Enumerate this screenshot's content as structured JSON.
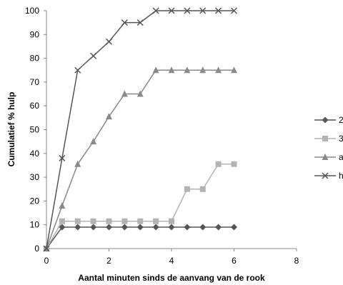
{
  "chart_data": {
    "type": "line",
    "title": "",
    "xlabel": "Aantal minuten sinds de aanvang van de rook",
    "ylabel": "Cumulatief % hulp",
    "xlim": [
      0,
      8
    ],
    "ylim": [
      0,
      100
    ],
    "xticks": [
      0,
      2,
      4,
      6,
      8
    ],
    "yticks": [
      0,
      10,
      20,
      30,
      40,
      50,
      60,
      70,
      80,
      90,
      100
    ],
    "grid": false,
    "legend_position": "right",
    "series": [
      {
        "name": "2",
        "color": "#555555",
        "marker": "diamond",
        "points": [
          [
            0,
            0
          ],
          [
            0.5,
            9
          ],
          [
            1,
            9
          ],
          [
            1.5,
            9
          ],
          [
            2,
            9
          ],
          [
            2.5,
            9
          ],
          [
            3,
            9
          ],
          [
            3.5,
            9
          ],
          [
            4,
            9
          ],
          [
            4.5,
            9
          ],
          [
            5,
            9
          ],
          [
            5.5,
            9
          ],
          [
            6,
            9
          ]
        ]
      },
      {
        "name": "3",
        "color": "#b3b3b3",
        "marker": "square",
        "points": [
          [
            0,
            0
          ],
          [
            0.5,
            11.5
          ],
          [
            1,
            11.5
          ],
          [
            1.5,
            11.5
          ],
          [
            2,
            11.5
          ],
          [
            2.5,
            11.5
          ],
          [
            3,
            11.5
          ],
          [
            3.5,
            11.5
          ],
          [
            4,
            11.5
          ],
          [
            4.5,
            25
          ],
          [
            5,
            25
          ],
          [
            5.5,
            35.5
          ],
          [
            6,
            35.5
          ]
        ]
      },
      {
        "name": "a",
        "color": "#8a8a8a",
        "marker": "triangle",
        "points": [
          [
            0,
            0
          ],
          [
            0.5,
            18
          ],
          [
            1,
            35.5
          ],
          [
            1.5,
            45
          ],
          [
            2,
            55.5
          ],
          [
            2.5,
            65
          ],
          [
            3,
            65
          ],
          [
            3.5,
            75
          ],
          [
            4,
            75
          ],
          [
            4.5,
            75
          ],
          [
            5,
            75
          ],
          [
            5.5,
            75
          ],
          [
            6,
            75
          ]
        ]
      },
      {
        "name": "h",
        "color": "#555555",
        "marker": "x",
        "points": [
          [
            0,
            0
          ],
          [
            0.5,
            38
          ],
          [
            1,
            75
          ],
          [
            1.5,
            81
          ],
          [
            2,
            87
          ],
          [
            2.5,
            95
          ],
          [
            3,
            95
          ],
          [
            3.5,
            100
          ],
          [
            4,
            100
          ],
          [
            4.5,
            100
          ],
          [
            5,
            100
          ],
          [
            5.5,
            100
          ],
          [
            6,
            100
          ]
        ]
      }
    ]
  }
}
